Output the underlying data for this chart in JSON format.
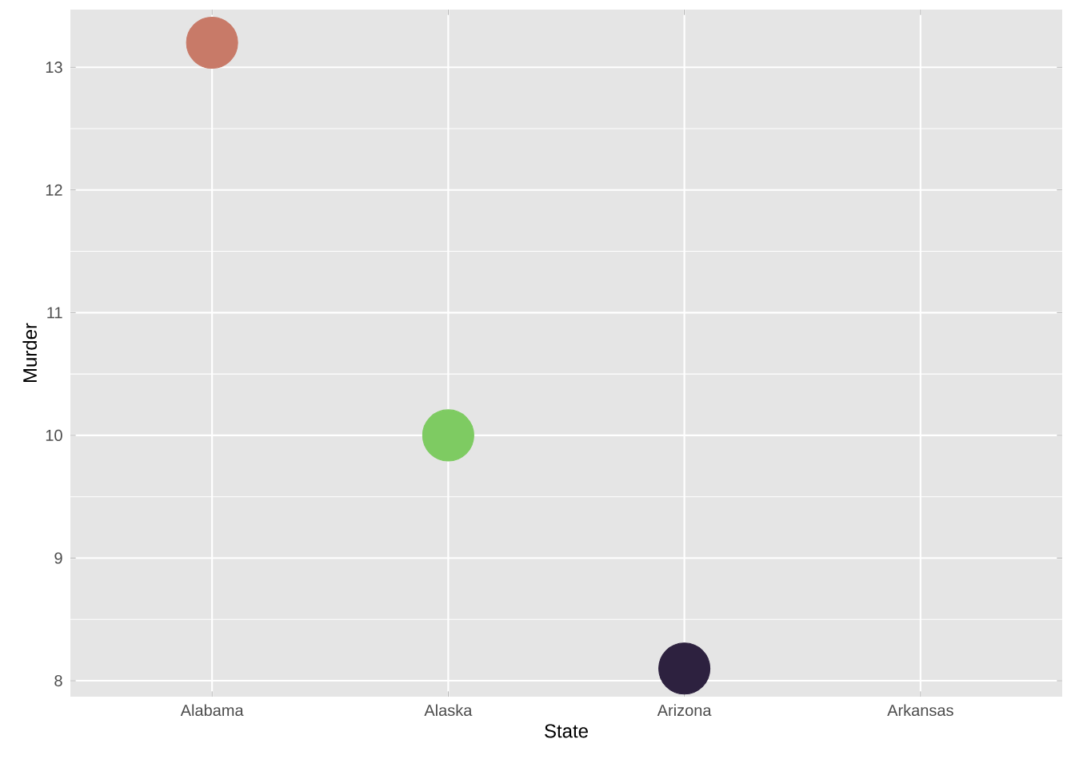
{
  "chart_data": {
    "type": "scatter",
    "xlabel": "State",
    "ylabel": "Murder",
    "categories": [
      "Alabama",
      "Alaska",
      "Arizona",
      "Arkansas"
    ],
    "values": [
      13.2,
      10.0,
      8.1,
      null
    ],
    "colors": [
      "#c87a68",
      "#7ecb62",
      "#2d213f",
      null
    ],
    "ylim": [
      7.87,
      13.47
    ],
    "yticks": [
      8,
      9,
      10,
      11,
      12,
      13
    ],
    "grid": true,
    "marker": "circle"
  }
}
